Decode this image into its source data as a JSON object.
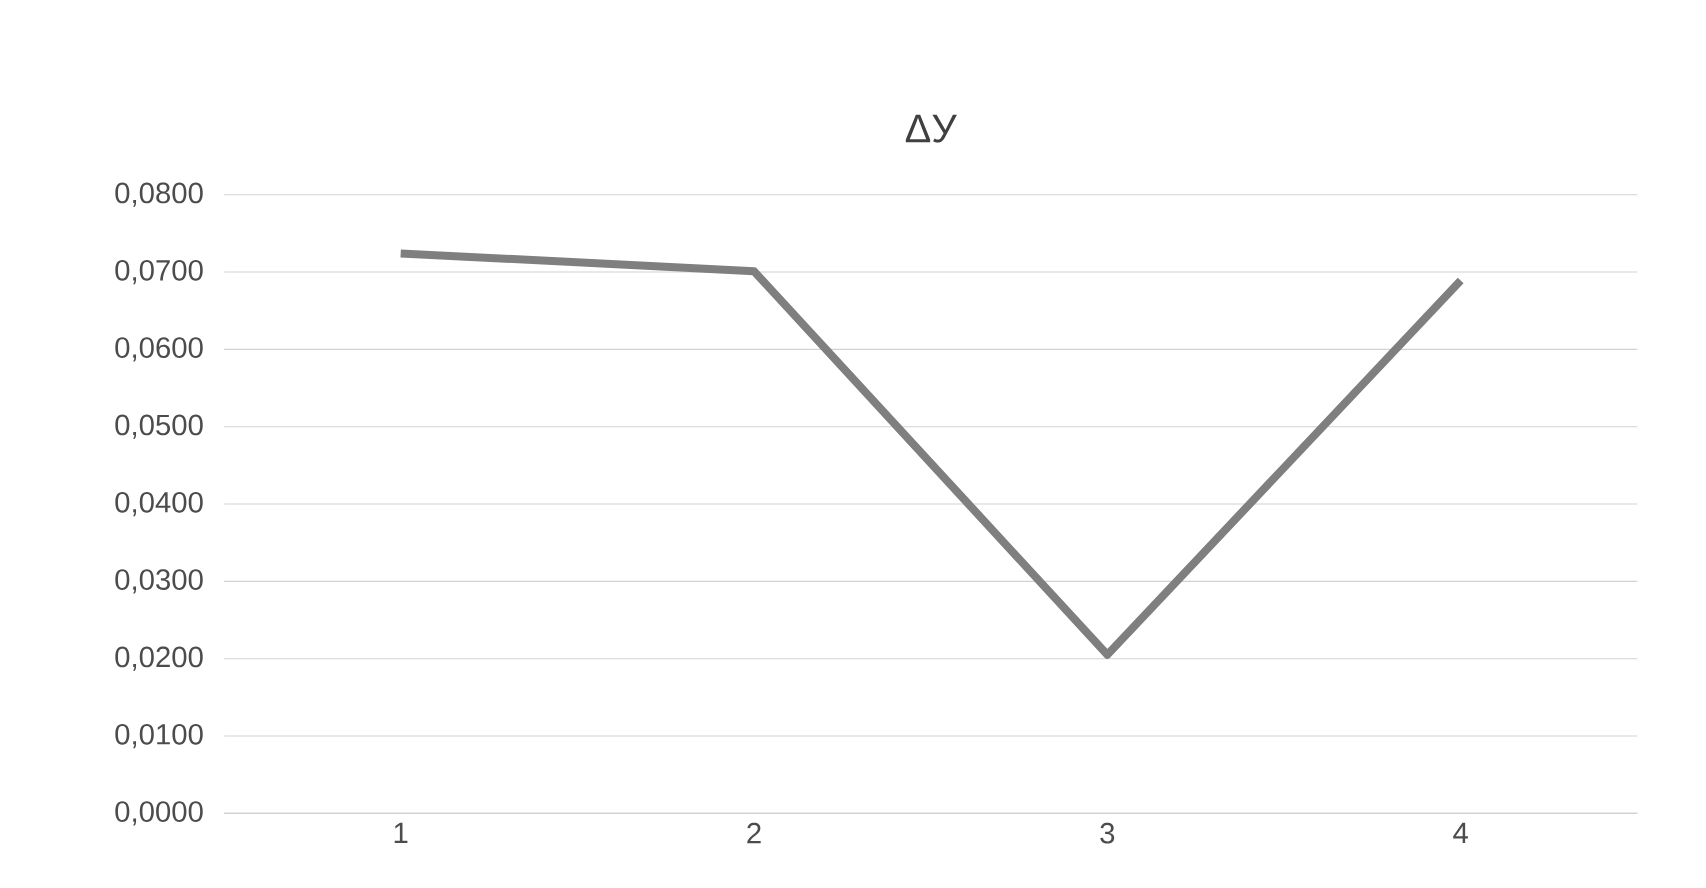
{
  "chart_data": {
    "type": "line",
    "title": "ΔУ",
    "categories": [
      "1",
      "2",
      "3",
      "4"
    ],
    "series": [
      {
        "color": "#7f7f7f",
        "values": [
          0.0724,
          0.0701,
          0.0205,
          0.0689
        ]
      }
    ],
    "ylim": [
      0,
      0.08
    ],
    "yticks": [
      {
        "value": 0,
        "label": "0,0000"
      },
      {
        "value": 0.01,
        "label": "0,0100"
      },
      {
        "value": 0.02,
        "label": "0,0200"
      },
      {
        "value": 0.03,
        "label": "0,0300"
      },
      {
        "value": 0.04,
        "label": "0,0400"
      },
      {
        "value": 0.05,
        "label": "0,0500"
      },
      {
        "value": 0.06,
        "label": "0,0600"
      },
      {
        "value": 0.07,
        "label": "0,0700"
      },
      {
        "value": 0.08,
        "label": "0,0800"
      }
    ],
    "grid": "y"
  }
}
